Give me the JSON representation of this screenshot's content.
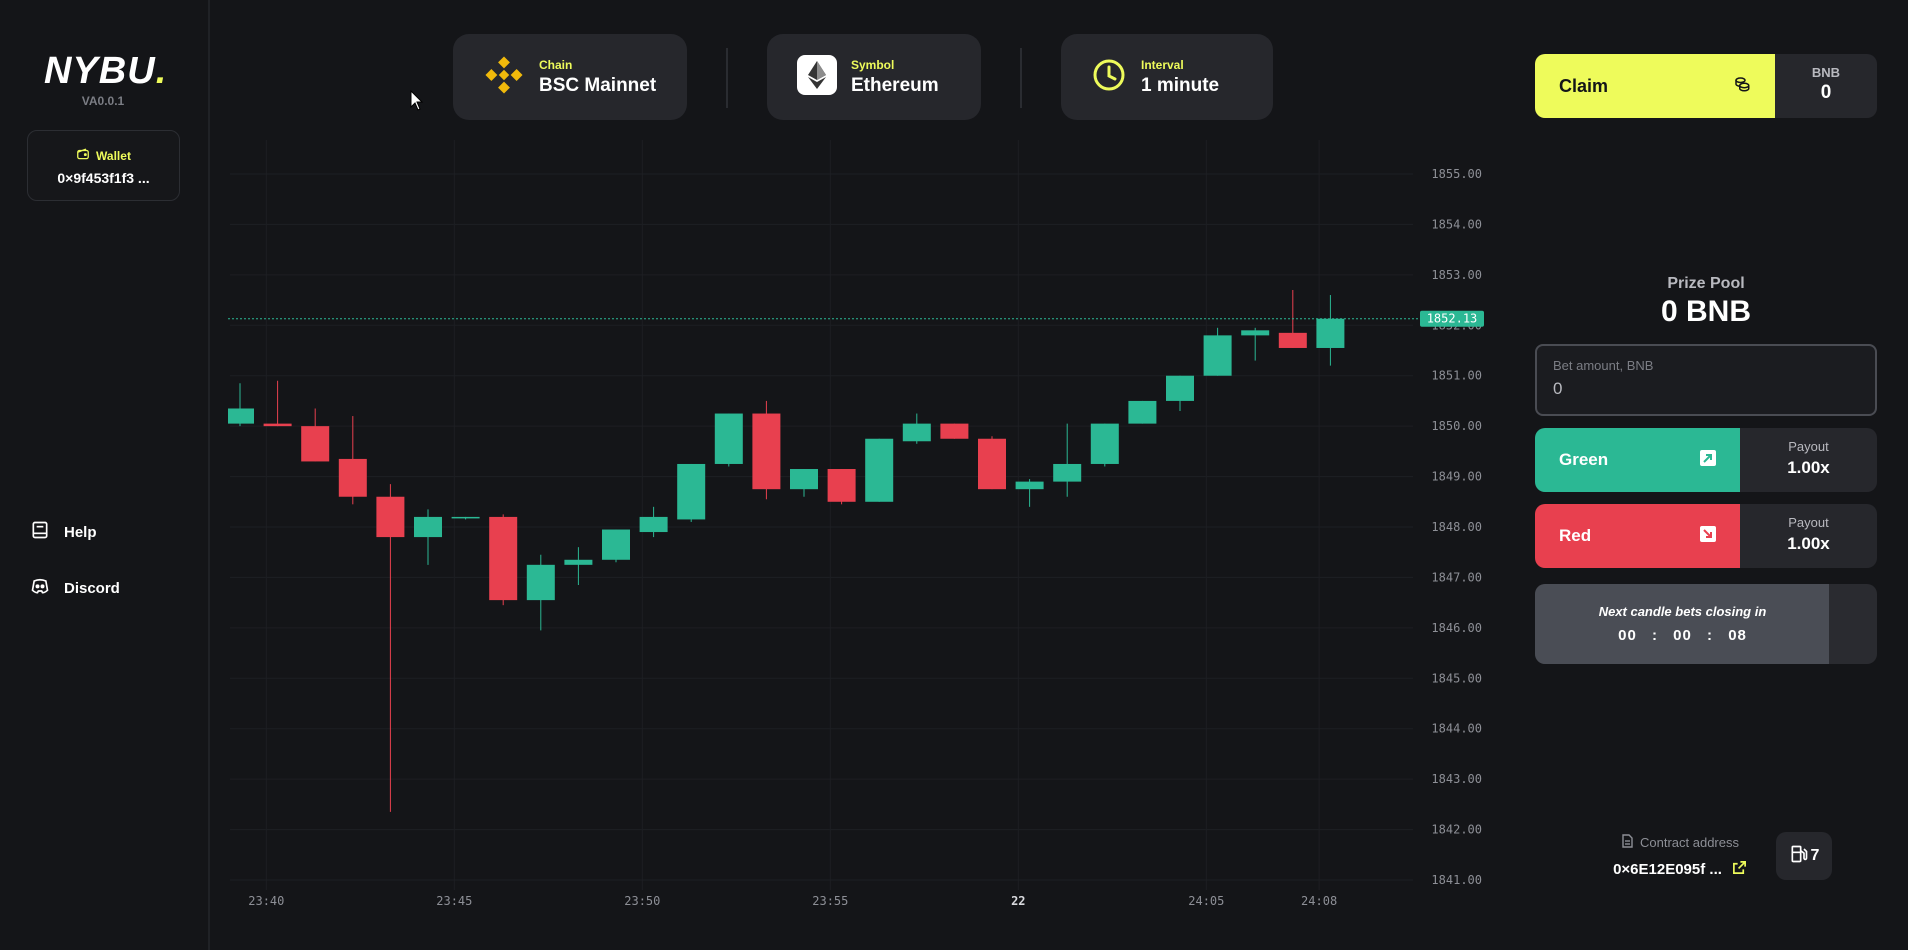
{
  "sidebar": {
    "logo": "NYBU",
    "logo_dot": ".",
    "version": "VA0.0.1",
    "wallet_label": "Wallet",
    "wallet_address": "0×9f453f1f3 ...",
    "links": [
      {
        "label": "Help",
        "icon": "book-icon"
      },
      {
        "label": "Discord",
        "icon": "discord-icon"
      }
    ]
  },
  "header": {
    "chain": {
      "label": "Chain",
      "value": "BSC Mainnet",
      "icon": "binance-icon"
    },
    "symbol": {
      "label": "Symbol",
      "value": "Ethereum",
      "icon": "ethereum-icon"
    },
    "interval": {
      "label": "Interval",
      "value": "1 minute",
      "icon": "clock-icon"
    }
  },
  "panel": {
    "claim_label": "Claim",
    "bnb_label": "BNB",
    "bnb_value": "0",
    "prize_label": "Prize Pool",
    "prize_value": "0 BNB",
    "bet_label": "Bet amount, BNB",
    "bet_value": "0",
    "green_label": "Green",
    "red_label": "Red",
    "payout_label": "Payout",
    "green_payout": "1.00x",
    "red_payout": "1.00x",
    "countdown_title": "Next candle bets closing in",
    "countdown_hours": "00",
    "countdown_minutes": "00",
    "countdown_seconds": "08",
    "countdown_separator": ":",
    "countdown_progress": 0.86,
    "contract_label": "Contract address",
    "contract_address": "0×6E12E095f ...",
    "gas_value": "7"
  },
  "colors": {
    "accent": "#eefb5b",
    "green": "#2bb894",
    "red": "#e8404f",
    "background": "#141518",
    "card": "#26272c"
  },
  "chart_data": {
    "type": "candlestick",
    "ylim": [
      1841,
      1855
    ],
    "y_ticks": [
      "1855.00",
      "1854.00",
      "1853.00",
      "1852.00",
      "1851.00",
      "1850.00",
      "1849.00",
      "1848.00",
      "1847.00",
      "1846.00",
      "1845.00",
      "1844.00",
      "1843.00",
      "1842.00",
      "1841.00"
    ],
    "x_ticks": [
      {
        "label": "23:40",
        "index": 0.7
      },
      {
        "label": "23:45",
        "index": 5.7
      },
      {
        "label": "23:50",
        "index": 10.7
      },
      {
        "label": "23:55",
        "index": 15.7
      },
      {
        "label": "22",
        "index": 20.7
      },
      {
        "label": "24:05",
        "index": 25.7
      },
      {
        "label": "24:08",
        "index": 28.7
      }
    ],
    "current_price": 1852.13,
    "current_price_label": "1852.13",
    "candles": [
      {
        "o": 1850.05,
        "h": 1850.85,
        "l": 1850.0,
        "c": 1850.35
      },
      {
        "o": 1850.05,
        "h": 1850.9,
        "l": 1850.0,
        "c": 1850.0
      },
      {
        "o": 1850.0,
        "h": 1850.35,
        "l": 1849.3,
        "c": 1849.3
      },
      {
        "o": 1849.35,
        "h": 1850.2,
        "l": 1848.45,
        "c": 1848.6
      },
      {
        "o": 1848.6,
        "h": 1848.85,
        "l": 1842.35,
        "c": 1847.8
      },
      {
        "o": 1847.8,
        "h": 1848.35,
        "l": 1847.25,
        "c": 1848.2
      },
      {
        "o": 1848.18,
        "h": 1848.2,
        "l": 1848.15,
        "c": 1848.2
      },
      {
        "o": 1848.2,
        "h": 1848.25,
        "l": 1846.45,
        "c": 1846.55
      },
      {
        "o": 1846.55,
        "h": 1847.45,
        "l": 1845.95,
        "c": 1847.25
      },
      {
        "o": 1847.25,
        "h": 1847.6,
        "l": 1846.85,
        "c": 1847.35
      },
      {
        "o": 1847.35,
        "h": 1847.95,
        "l": 1847.3,
        "c": 1847.95
      },
      {
        "o": 1847.9,
        "h": 1848.4,
        "l": 1847.8,
        "c": 1848.2
      },
      {
        "o": 1848.15,
        "h": 1849.25,
        "l": 1848.1,
        "c": 1849.25
      },
      {
        "o": 1849.25,
        "h": 1850.25,
        "l": 1849.2,
        "c": 1850.25
      },
      {
        "o": 1850.25,
        "h": 1850.5,
        "l": 1848.55,
        "c": 1848.75
      },
      {
        "o": 1848.75,
        "h": 1849.15,
        "l": 1848.6,
        "c": 1849.15
      },
      {
        "o": 1849.15,
        "h": 1849.15,
        "l": 1848.45,
        "c": 1848.5
      },
      {
        "o": 1848.5,
        "h": 1849.75,
        "l": 1848.5,
        "c": 1849.75
      },
      {
        "o": 1849.7,
        "h": 1850.25,
        "l": 1849.65,
        "c": 1850.05
      },
      {
        "o": 1850.05,
        "h": 1850.05,
        "l": 1849.75,
        "c": 1849.75
      },
      {
        "o": 1849.75,
        "h": 1849.8,
        "l": 1848.75,
        "c": 1848.75
      },
      {
        "o": 1848.75,
        "h": 1848.95,
        "l": 1848.4,
        "c": 1848.9
      },
      {
        "o": 1848.9,
        "h": 1850.05,
        "l": 1848.6,
        "c": 1849.25
      },
      {
        "o": 1849.25,
        "h": 1850.05,
        "l": 1849.2,
        "c": 1850.05
      },
      {
        "o": 1850.05,
        "h": 1850.5,
        "l": 1850.05,
        "c": 1850.5
      },
      {
        "o": 1850.5,
        "h": 1851.0,
        "l": 1850.3,
        "c": 1851.0
      },
      {
        "o": 1851.0,
        "h": 1851.95,
        "l": 1851.0,
        "c": 1851.8
      },
      {
        "o": 1851.8,
        "h": 1851.95,
        "l": 1851.3,
        "c": 1851.9
      },
      {
        "o": 1851.85,
        "h": 1852.7,
        "l": 1851.55,
        "c": 1851.55
      },
      {
        "o": 1851.55,
        "h": 1852.6,
        "l": 1851.2,
        "c": 1852.13
      }
    ]
  }
}
